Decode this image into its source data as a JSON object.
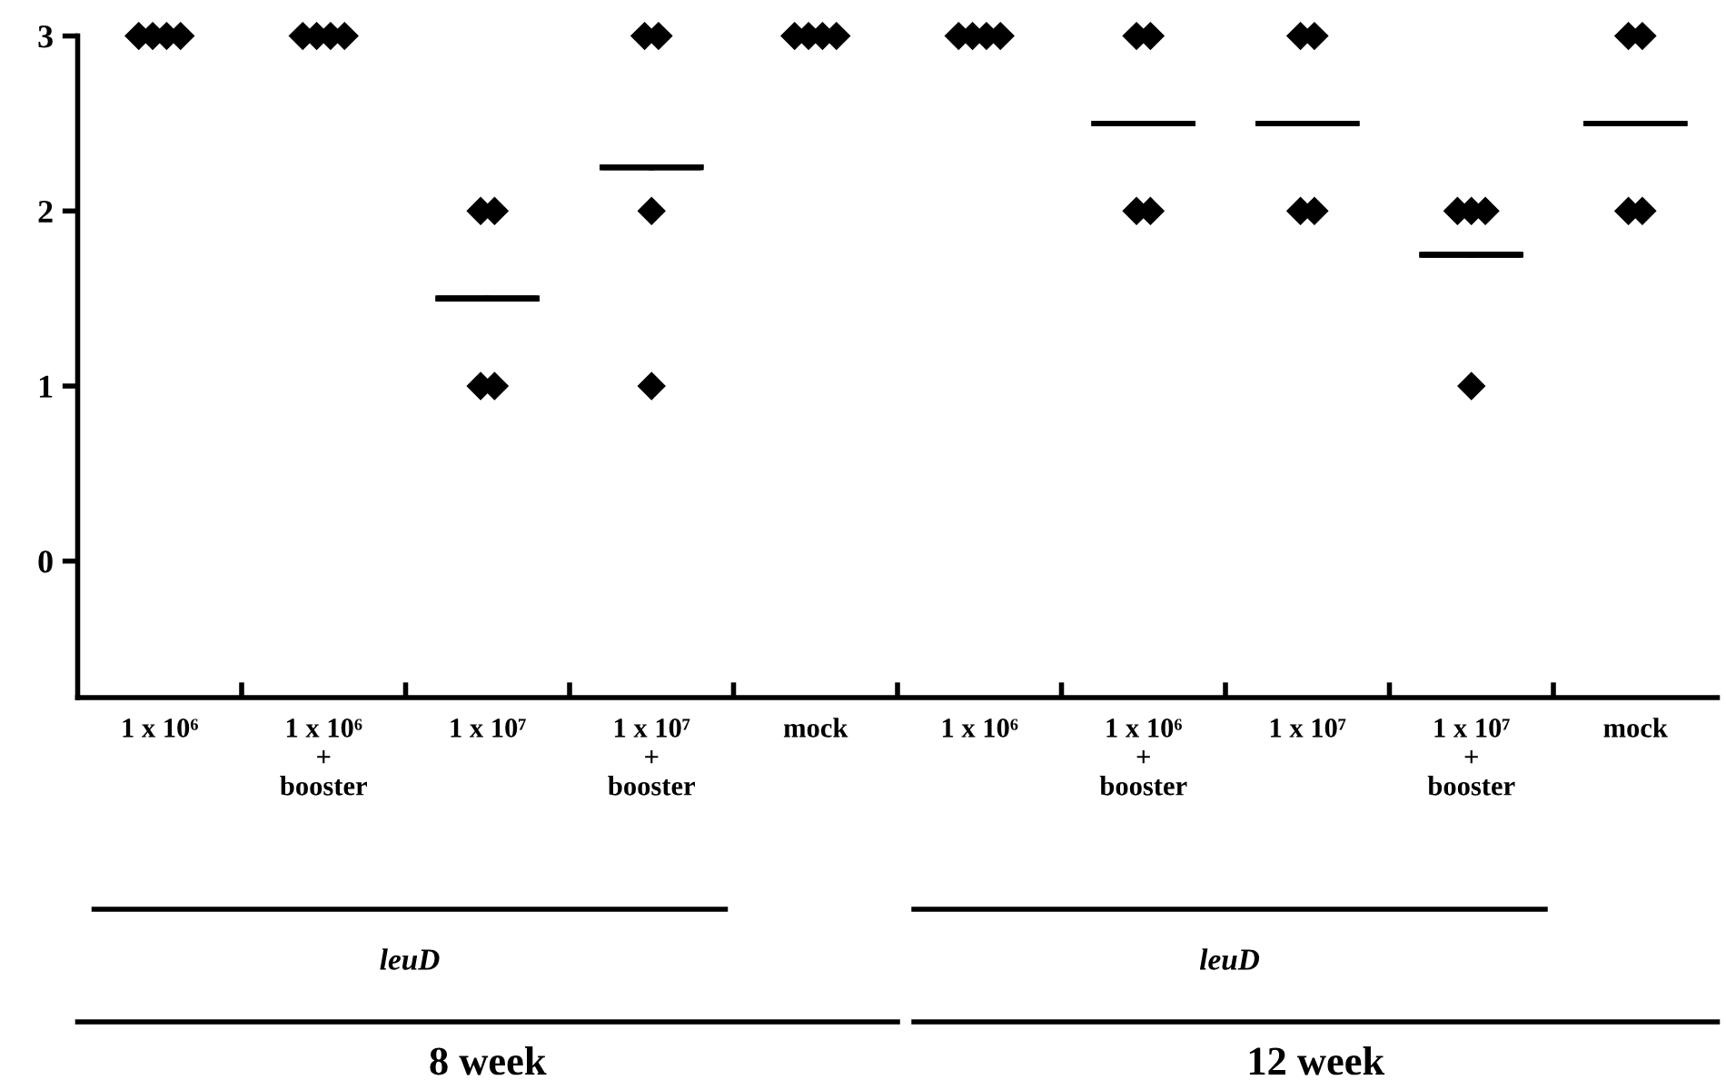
{
  "chart_data": {
    "type": "scatter",
    "categories": [
      "1 x 10⁶",
      "1 x 10⁶\n+\nbooster",
      "1 x 10⁷",
      "1 x 10⁷\n+\nbooster",
      "mock",
      "1 x 10⁶",
      "1 x 10⁶\n+\nbooster",
      "1 x 10⁷",
      "1 x 10⁷\n+\nbooster",
      "mock"
    ],
    "series": [
      {
        "color": "#000000",
        "marker": "diamond",
        "values": [
          3,
          3,
          2,
          3,
          3,
          3,
          3,
          3,
          2,
          3
        ]
      },
      {
        "color": "#000000",
        "marker": "diamond",
        "values": [
          3,
          3,
          2,
          3,
          3,
          3,
          3,
          3,
          2,
          3
        ]
      },
      {
        "color": "#000000",
        "marker": "diamond",
        "values": [
          3,
          3,
          1,
          2,
          3,
          3,
          2,
          2,
          2,
          2
        ]
      },
      {
        "color": "#000000",
        "marker": "diamond",
        "values": [
          3,
          3,
          1,
          1,
          3,
          3,
          2,
          2,
          1,
          2
        ]
      },
      {
        "type": "box",
        "color": "#000000",
        "boxes": [
          null,
          null,
          {
            "low": 1.5,
            "q1": 1.5,
            "median": 1.5,
            "q3": 1.5,
            "high": 1.5
          },
          {
            "low": 2.25,
            "q1": 2.25,
            "median": 2.25,
            "q3": 2.25,
            "high": 2.25
          },
          null,
          null,
          {
            "low": 2.5,
            "q1": 2.5,
            "median": 2.5,
            "q3": 2.5,
            "high": 2.5
          },
          {
            "low": 2.5,
            "q1": 2.5,
            "median": 2.5,
            "q3": 2.5,
            "high": 2.5
          },
          {
            "low": 1.75,
            "q1": 1.75,
            "median": 1.75,
            "q3": 1.75,
            "high": 1.75
          },
          {
            "low": 2.5,
            "q1": 2.5,
            "median": 2.5,
            "q3": 2.5,
            "high": 2.5
          }
        ]
      }
    ],
    "ylim": [
      -0.78,
      3
    ],
    "yticks": [
      0,
      1,
      2,
      3
    ],
    "grid": false,
    "legend": false,
    "annotations": [
      "leuD",
      "leuD",
      "8 week",
      "12 week"
    ]
  }
}
